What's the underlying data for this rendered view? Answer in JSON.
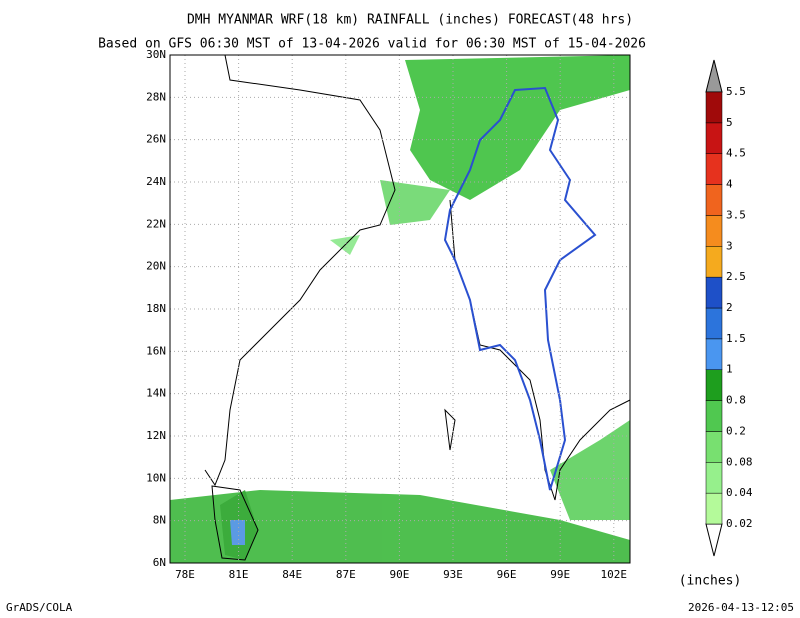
{
  "title": "DMH MYANMAR WRF(18 km) RAINFALL (inches) FORECAST(48 hrs)",
  "subtitle": "Based on GFS 06:30 MST of 13-04-2026 valid for 06:30 MST of 15-04-2026",
  "lat_labels": [
    "30N",
    "28N",
    "26N",
    "24N",
    "22N",
    "20N",
    "18N",
    "16N",
    "14N",
    "12N",
    "10N",
    "8N",
    "6N"
  ],
  "lon_labels": [
    "78E",
    "81E",
    "84E",
    "87E",
    "90E",
    "93E",
    "96E",
    "99E",
    "102E"
  ],
  "colorbar": {
    "labels": [
      "0.02",
      "0.04",
      "0.08",
      "0.2",
      "0.8",
      "1",
      "1.5",
      "2",
      "2.5",
      "3",
      "3.5",
      "4",
      "4.5",
      "5",
      "5.5"
    ],
    "unit": "(inches)"
  },
  "footer": {
    "left": "GrADS/COLA",
    "right": "2026-04-13-12:05"
  }
}
